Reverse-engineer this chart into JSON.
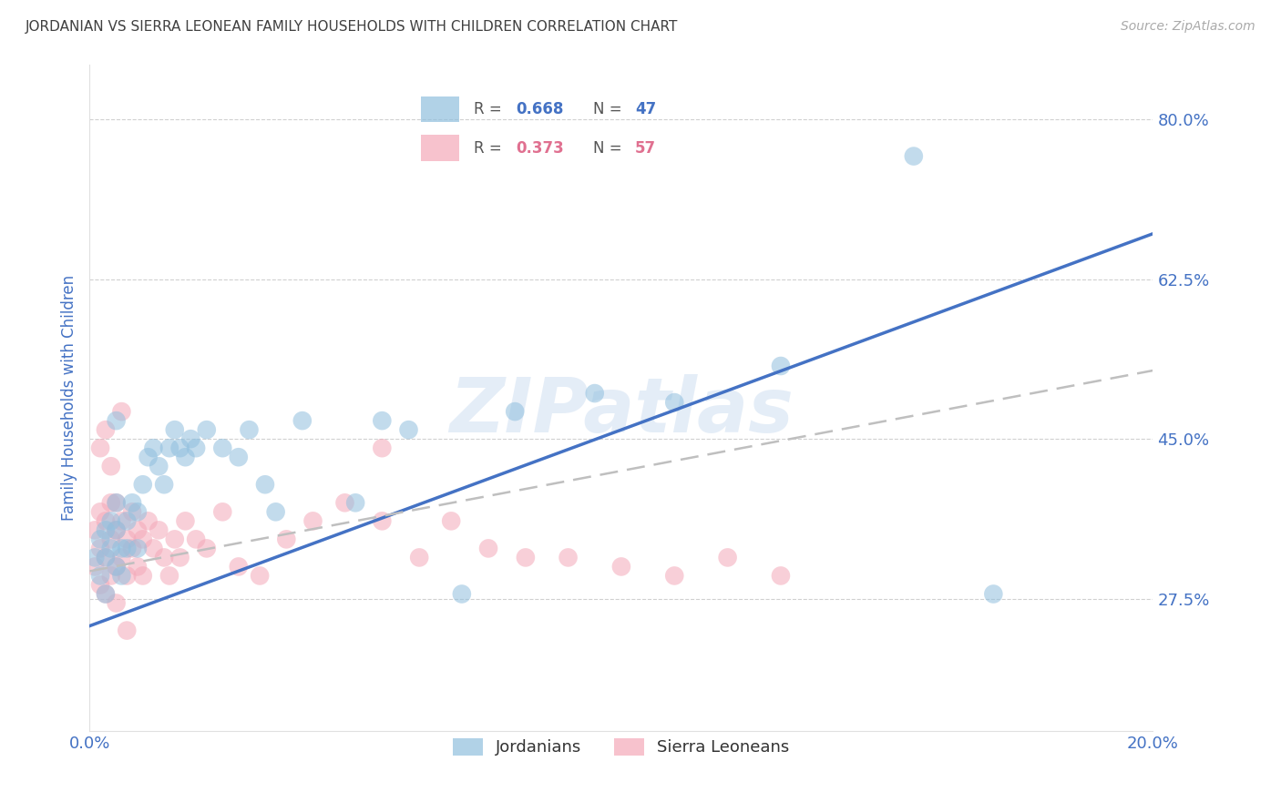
{
  "title": "JORDANIAN VS SIERRA LEONEAN FAMILY HOUSEHOLDS WITH CHILDREN CORRELATION CHART",
  "source": "Source: ZipAtlas.com",
  "ylabel": "Family Households with Children",
  "x_min": 0.0,
  "x_max": 0.2,
  "y_min": 0.13,
  "y_max": 0.86,
  "y_ticks": [
    0.275,
    0.45,
    0.625,
    0.8
  ],
  "y_tick_labels": [
    "27.5%",
    "45.0%",
    "62.5%",
    "80.0%"
  ],
  "x_ticks": [
    0.0,
    0.04,
    0.08,
    0.12,
    0.16,
    0.2
  ],
  "x_tick_labels": [
    "0.0%",
    "",
    "",
    "",
    "",
    "20.0%"
  ],
  "jordan_R": 0.668,
  "jordan_N": 47,
  "sl_R": 0.373,
  "sl_N": 57,
  "jordan_color": "#90bfde",
  "sl_color": "#f4a8b8",
  "jordan_line_color": "#4472c4",
  "sl_line_color": "#bfbfbf",
  "watermark": "ZIPatlas",
  "jordan_scatter_x": [
    0.001,
    0.002,
    0.002,
    0.003,
    0.003,
    0.003,
    0.004,
    0.004,
    0.005,
    0.005,
    0.005,
    0.006,
    0.006,
    0.007,
    0.007,
    0.008,
    0.009,
    0.009,
    0.01,
    0.011,
    0.012,
    0.013,
    0.014,
    0.015,
    0.016,
    0.017,
    0.018,
    0.019,
    0.02,
    0.022,
    0.025,
    0.028,
    0.03,
    0.033,
    0.035,
    0.04,
    0.05,
    0.055,
    0.06,
    0.07,
    0.08,
    0.095,
    0.11,
    0.13,
    0.155,
    0.17,
    0.005
  ],
  "jordan_scatter_y": [
    0.32,
    0.34,
    0.3,
    0.35,
    0.32,
    0.28,
    0.36,
    0.33,
    0.35,
    0.31,
    0.38,
    0.33,
    0.3,
    0.36,
    0.33,
    0.38,
    0.37,
    0.33,
    0.4,
    0.43,
    0.44,
    0.42,
    0.4,
    0.44,
    0.46,
    0.44,
    0.43,
    0.45,
    0.44,
    0.46,
    0.44,
    0.43,
    0.46,
    0.4,
    0.37,
    0.47,
    0.38,
    0.47,
    0.46,
    0.28,
    0.48,
    0.5,
    0.49,
    0.53,
    0.76,
    0.28,
    0.47
  ],
  "sl_scatter_x": [
    0.001,
    0.001,
    0.002,
    0.002,
    0.002,
    0.003,
    0.003,
    0.003,
    0.004,
    0.004,
    0.004,
    0.005,
    0.005,
    0.005,
    0.006,
    0.006,
    0.007,
    0.007,
    0.008,
    0.008,
    0.009,
    0.009,
    0.01,
    0.01,
    0.011,
    0.012,
    0.013,
    0.014,
    0.015,
    0.016,
    0.017,
    0.018,
    0.02,
    0.022,
    0.025,
    0.028,
    0.032,
    0.037,
    0.042,
    0.048,
    0.055,
    0.062,
    0.068,
    0.075,
    0.082,
    0.09,
    0.1,
    0.11,
    0.12,
    0.13,
    0.002,
    0.003,
    0.004,
    0.005,
    0.006,
    0.007,
    0.055
  ],
  "sl_scatter_y": [
    0.35,
    0.31,
    0.37,
    0.33,
    0.29,
    0.36,
    0.32,
    0.28,
    0.38,
    0.34,
    0.3,
    0.35,
    0.31,
    0.27,
    0.36,
    0.32,
    0.34,
    0.3,
    0.37,
    0.33,
    0.35,
    0.31,
    0.34,
    0.3,
    0.36,
    0.33,
    0.35,
    0.32,
    0.3,
    0.34,
    0.32,
    0.36,
    0.34,
    0.33,
    0.37,
    0.31,
    0.3,
    0.34,
    0.36,
    0.38,
    0.36,
    0.32,
    0.36,
    0.33,
    0.32,
    0.32,
    0.31,
    0.3,
    0.32,
    0.3,
    0.44,
    0.46,
    0.42,
    0.38,
    0.48,
    0.24,
    0.44
  ],
  "jordan_line_x": [
    0.0,
    0.2
  ],
  "jordan_line_y": [
    0.245,
    0.675
  ],
  "sl_line_x": [
    0.0,
    0.2
  ],
  "sl_line_y": [
    0.305,
    0.525
  ],
  "background_color": "#ffffff",
  "grid_color": "#d0d0d0",
  "title_color": "#404040",
  "axis_label_color": "#4472c4",
  "tick_label_color": "#4472c4",
  "legend_jordan_color": "#90bfde",
  "legend_sl_color": "#f4a8b8",
  "legend_jordan_R_color": "#4472c4",
  "legend_sl_R_color": "#e07090"
}
